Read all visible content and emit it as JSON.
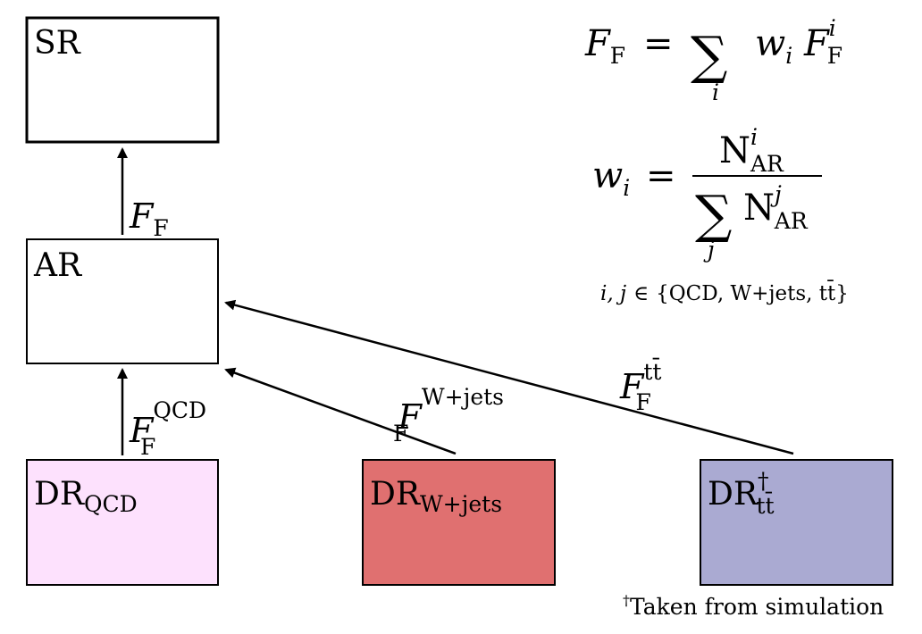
{
  "boxes": {
    "sr": {
      "label": "SR",
      "fill": "#ffffff"
    },
    "ar": {
      "label": "AR",
      "fill": "#ffffff"
    },
    "dr_qcd": {
      "label": "DR",
      "sub": "QCD",
      "fill": "#fde1fd"
    },
    "dr_wjets": {
      "label": "DR",
      "sub": "W+jets",
      "fill": "#e07070"
    },
    "dr_tt": {
      "label": "DR",
      "sup": "†",
      "sub": "tt̄",
      "fill": "#aaaad2"
    }
  },
  "arrows": {
    "ar_to_sr": {
      "label": "F",
      "sub": "F",
      "sup": ""
    },
    "qcd_to_ar": {
      "label": "F",
      "sub": "F",
      "sup": "QCD"
    },
    "wjets_to_ar": {
      "label": "F",
      "sub": "F",
      "sup": "W+jets"
    },
    "tt_to_ar": {
      "label": "F",
      "sub": "F",
      "sup": "tt̄"
    }
  },
  "equations": {
    "eq1": {
      "lhs": "F",
      "lhs_sub": "F",
      "equals": "=",
      "sum": "∑",
      "sum_index": "i",
      "w": "w",
      "w_sub": "i",
      "rhs": "F",
      "rhs_sub": "F",
      "rhs_sup": "i"
    },
    "eq2": {
      "lhs": "w",
      "lhs_sub": "i",
      "equals": "=",
      "num": "N",
      "num_sub": "AR",
      "num_sup": "i",
      "sum": "∑",
      "sum_index": "j",
      "den": "N",
      "den_sub": "AR",
      "den_sup": "j"
    },
    "set": {
      "vars": "i, j",
      "in": "∈",
      "members": "{QCD, W+jets, tt̄}"
    }
  },
  "footnote": {
    "mark": "†",
    "text": "Taken from simulation"
  },
  "colors": {
    "stroke": "#000000",
    "dr_qcd": "#fde1fd",
    "dr_wjets": "#e07070",
    "dr_tt": "#aaaad2"
  }
}
